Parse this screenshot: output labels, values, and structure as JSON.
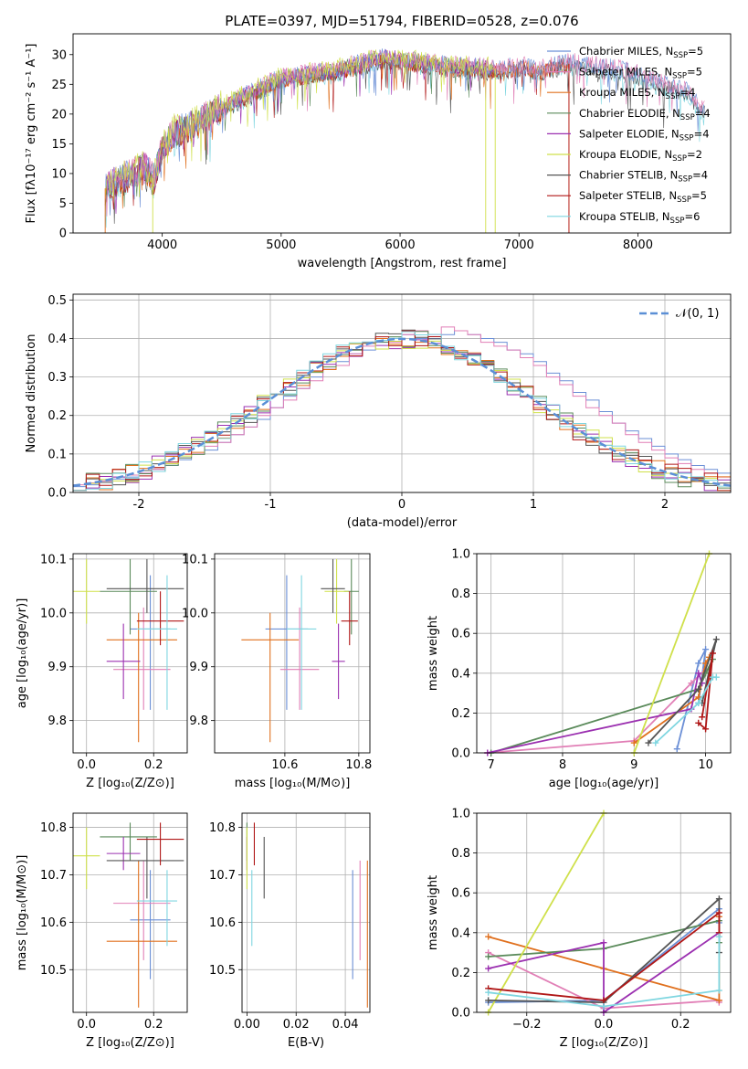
{
  "figure_title": "PLATE=0397, MJD=51794, FIBERID=0528, z=0.076",
  "colors": {
    "chab_miles": "#6b8fd6",
    "salp_miles": "#e17fb6",
    "krou_miles": "#e0701e",
    "chab_elodie": "#5a8a5a",
    "salp_elodie": "#9b30b0",
    "krou_elodie": "#cfe04a",
    "chab_stelib": "#555555",
    "salp_stelib": "#b01717",
    "krou_stelib": "#7fd6e0",
    "gauss": "#5b8fd6"
  },
  "chart_data": [
    {
      "id": "spectrum",
      "type": "line",
      "xlabel": "wavelength [Angstrom, rest frame]",
      "ylabel": "Flux [fλ10⁻¹⁷ erg cm⁻² s⁻¹ A⁻¹]",
      "xlim": [
        3250,
        8780
      ],
      "ylim": [
        0,
        33.5
      ],
      "xticks": [
        "4000",
        "5000",
        "6000",
        "7000",
        "8000"
      ],
      "yticks": [
        "0",
        "5",
        "10",
        "15",
        "20",
        "25",
        "30"
      ],
      "legend_position": "top-right",
      "legend": [
        {
          "label": "Chabrier MILES, N_SSP=5",
          "color": "#6b8fd6"
        },
        {
          "label": "Salpeter MILES, N_SSP=5",
          "color": "#e17fb6"
        },
        {
          "label": "Kroupa MILES, N_SSP=4",
          "color": "#e0701e"
        },
        {
          "label": "Chabrier ELODIE, N_SSP=4",
          "color": "#5a8a5a"
        },
        {
          "label": "Salpeter ELODIE, N_SSP=4",
          "color": "#9b30b0"
        },
        {
          "label": "Kroupa ELODIE, N_SSP=2",
          "color": "#cfe04a"
        },
        {
          "label": "Chabrier STELIB, N_SSP=4",
          "color": "#555555"
        },
        {
          "label": "Salpeter STELIB, N_SSP=5",
          "color": "#b01717"
        },
        {
          "label": "Kroupa STELIB, N_SSP=6",
          "color": "#7fd6e0"
        }
      ],
      "legend_text": [
        {
          "name": "Chabrier MILES, N",
          "sub": "SSP",
          "tail": "=5"
        },
        {
          "name": "Salpeter MILES, N",
          "sub": "SSP",
          "tail": "=5"
        },
        {
          "name": "Kroupa MILES, N",
          "sub": "SSP",
          "tail": "=4"
        },
        {
          "name": "Chabrier ELODIE, N",
          "sub": "SSP",
          "tail": "=4"
        },
        {
          "name": "Salpeter ELODIE, N",
          "sub": "SSP",
          "tail": "=4"
        },
        {
          "name": "Kroupa ELODIE, N",
          "sub": "SSP",
          "tail": "=2"
        },
        {
          "name": "Chabrier STELIB, N",
          "sub": "SSP",
          "tail": "=4"
        },
        {
          "name": "Salpeter STELIB, N",
          "sub": "SSP",
          "tail": "=5"
        },
        {
          "name": "Kroupa STELIB, N",
          "sub": "SSP",
          "tail": "=6"
        }
      ],
      "continuum": [
        [
          3520,
          7.5
        ],
        [
          3700,
          9.5
        ],
        [
          3850,
          11
        ],
        [
          3930,
          9
        ],
        [
          4000,
          14
        ],
        [
          4100,
          17
        ],
        [
          4300,
          18.5
        ],
        [
          4450,
          20.5
        ],
        [
          4600,
          22
        ],
        [
          4800,
          24
        ],
        [
          5000,
          26
        ],
        [
          5200,
          26.5
        ],
        [
          5400,
          27
        ],
        [
          5600,
          28
        ],
        [
          5800,
          29
        ],
        [
          5900,
          29.5
        ],
        [
          6000,
          29
        ],
        [
          6200,
          28.5
        ],
        [
          6400,
          28
        ],
        [
          6600,
          27.8
        ],
        [
          6800,
          27.5
        ],
        [
          7000,
          28
        ],
        [
          7200,
          27.5
        ],
        [
          7400,
          28.5
        ],
        [
          7600,
          28
        ],
        [
          7800,
          27.5
        ],
        [
          8000,
          26.5
        ],
        [
          8200,
          25
        ],
        [
          8400,
          24
        ],
        [
          8550,
          20.5
        ]
      ]
    },
    {
      "id": "residuals",
      "type": "histogram",
      "xlabel": "(data-model)/error",
      "ylabel": "Normed distribution",
      "xlim": [
        -2.5,
        2.5
      ],
      "ylim": [
        0,
        0.515
      ],
      "xticks": [
        "-2",
        "-1",
        "0",
        "1",
        "2"
      ],
      "yticks": [
        "0.0",
        "0.1",
        "0.2",
        "0.3",
        "0.4",
        "0.5"
      ],
      "bin_width": 0.1,
      "legend_position": "top-right",
      "gauss_label": "𝒩(0, 1)",
      "series": [
        {
          "name": "Chabrier MILES",
          "color": "#6b8fd6",
          "values": [
            0.015,
            0.02,
            0.03,
            0.035,
            0.04,
            0.05,
            0.06,
            0.07,
            0.085,
            0.1,
            0.11,
            0.13,
            0.15,
            0.17,
            0.19,
            0.22,
            0.25,
            0.27,
            0.3,
            0.32,
            0.34,
            0.36,
            0.37,
            0.39,
            0.4,
            0.41,
            0.4,
            0.4,
            0.41,
            0.42,
            0.41,
            0.4,
            0.39,
            0.37,
            0.36,
            0.34,
            0.31,
            0.29,
            0.26,
            0.24,
            0.21,
            0.18,
            0.16,
            0.14,
            0.12,
            0.1,
            0.085,
            0.07,
            0.06,
            0.05
          ]
        },
        {
          "name": "Salpeter MILES",
          "color": "#e17fb6",
          "values": [
            0.02,
            0.025,
            0.03,
            0.04,
            0.045,
            0.05,
            0.06,
            0.075,
            0.09,
            0.1,
            0.12,
            0.13,
            0.15,
            0.17,
            0.2,
            0.22,
            0.24,
            0.27,
            0.29,
            0.32,
            0.33,
            0.36,
            0.38,
            0.4,
            0.39,
            0.41,
            0.42,
            0.41,
            0.43,
            0.42,
            0.41,
            0.39,
            0.38,
            0.37,
            0.35,
            0.33,
            0.3,
            0.28,
            0.25,
            0.22,
            0.2,
            0.18,
            0.15,
            0.13,
            0.11,
            0.09,
            0.075,
            0.06,
            0.05,
            0.04
          ]
        }
      ]
    },
    {
      "id": "age_vs_Z",
      "type": "scatter",
      "xlabel": "Z [log₁₀(Z/Z⊙)]",
      "ylabel": "age  [log₁₀(age/yr)]",
      "xlim": [
        -0.04,
        0.3
      ],
      "ylim": [
        9.74,
        10.11
      ],
      "xticks": [
        "0.0",
        "0.2"
      ],
      "yticks": [
        "9.8",
        "9.9",
        "10.0",
        "10.1"
      ]
    },
    {
      "id": "age_vs_mass",
      "type": "scatter",
      "xlabel": "mass [log₁₀(M/M⊙)]",
      "ylabel": "",
      "xlim": [
        10.41,
        10.83
      ],
      "ylim": [
        9.74,
        10.11
      ],
      "xticks": [
        "10.6",
        "10.8"
      ],
      "yticks": [
        "9.8",
        "9.9",
        "10.0",
        "10.1"
      ]
    },
    {
      "id": "massweight_vs_age",
      "type": "line",
      "xlabel": "age  [log₁₀(age/yr)]",
      "ylabel": "mass weight",
      "xlim": [
        6.8,
        10.35
      ],
      "ylim": [
        0,
        1.0
      ],
      "xticks": [
        "7",
        "8",
        "9",
        "10"
      ],
      "yticks": [
        "0.0",
        "0.2",
        "0.4",
        "0.6",
        "0.8",
        "1.0"
      ]
    },
    {
      "id": "mass_vs_Z",
      "type": "scatter",
      "xlabel": "Z [log₁₀(Z/Z⊙)]",
      "ylabel": "mass [log₁₀(M/M⊙)]",
      "xlim": [
        -0.04,
        0.3
      ],
      "ylim": [
        10.41,
        10.83
      ],
      "xticks": [
        "0.0",
        "0.2"
      ],
      "yticks": [
        "10.5",
        "10.6",
        "10.7",
        "10.8"
      ]
    },
    {
      "id": "mass_vs_ebv",
      "type": "scatter",
      "xlabel": "E(B-V)",
      "ylabel": "",
      "xlim": [
        -0.002,
        0.05
      ],
      "ylim": [
        10.41,
        10.83
      ],
      "xticks": [
        "0.00",
        "0.02",
        "0.04"
      ],
      "yticks": [
        "10.5",
        "10.6",
        "10.7",
        "10.8"
      ]
    },
    {
      "id": "massweight_vs_Z",
      "type": "line",
      "xlabel": "Z [log₁₀(Z/Z⊙)]",
      "ylabel": "mass weight",
      "xlim": [
        -0.33,
        0.33
      ],
      "ylim": [
        0,
        1.0
      ],
      "xticks": [
        "−0.2",
        "0.0",
        "0.2"
      ],
      "yticks": [
        "0.0",
        "0.2",
        "0.4",
        "0.6",
        "0.8",
        "1.0"
      ]
    }
  ],
  "models": [
    {
      "key": "chab_miles",
      "color": "#6b8fd6",
      "Z": 0.19,
      "Zerr": [
        0.13,
        0.25
      ],
      "age": 9.97,
      "ageerr": [
        9.82,
        10.07
      ],
      "mass": 10.605,
      "masserr": [
        10.48,
        10.71
      ],
      "ebv": 0.043,
      "weights": [
        [
          9.6,
          0.02
        ],
        [
          9.9,
          0.45
        ],
        [
          10.0,
          0.52
        ],
        [
          9.9,
          0.25
        ]
      ],
      "zw": [
        [
          -0.3,
          0.05
        ],
        [
          0.0,
          0.06
        ],
        [
          0.3,
          0.52
        ],
        [
          0.3,
          0.45
        ]
      ]
    },
    {
      "key": "salp_miles",
      "color": "#e17fb6",
      "Z": 0.17,
      "Zerr": [
        0.08,
        0.25
      ],
      "age": 9.895,
      "ageerr": [
        9.82,
        10.01
      ],
      "mass": 10.64,
      "masserr": [
        10.52,
        10.73
      ],
      "ebv": 0.046,
      "weights": [
        [
          6.95,
          0.0
        ],
        [
          9.0,
          0.06
        ],
        [
          9.8,
          0.35
        ],
        [
          10.0,
          0.42
        ]
      ],
      "zw": [
        [
          -0.3,
          0.3
        ],
        [
          0.0,
          0.02
        ],
        [
          0.3,
          0.06
        ],
        [
          0.3,
          0.05
        ]
      ]
    },
    {
      "key": "krou_miles",
      "color": "#e0701e",
      "Z": 0.155,
      "Zerr": [
        0.06,
        0.27
      ],
      "age": 9.95,
      "ageerr": [
        9.76,
        10.0
      ],
      "mass": 10.56,
      "masserr": [
        10.42,
        10.73
      ],
      "ebv": 0.049,
      "weights": [
        [
          9.0,
          0.05
        ],
        [
          9.9,
          0.28
        ],
        [
          10.0,
          0.45
        ],
        [
          10.05,
          0.48
        ]
      ],
      "zw": [
        [
          -0.3,
          0.38
        ],
        [
          0.0,
          0.22
        ],
        [
          0.3,
          0.06
        ],
        [
          0.3,
          0.48
        ]
      ]
    },
    {
      "key": "chab_elodie",
      "color": "#5a8a5a",
      "Z": 0.13,
      "Zerr": [
        0.04,
        0.21
      ],
      "age": 10.04,
      "ageerr": [
        9.96,
        10.1
      ],
      "mass": 10.78,
      "masserr": [
        10.73,
        10.81
      ],
      "ebv": 0.0,
      "weights": [
        [
          7.0,
          0.0
        ],
        [
          9.9,
          0.32
        ],
        [
          10.1,
          0.47
        ],
        [
          10.0,
          0.4
        ]
      ],
      "zw": [
        [
          -0.3,
          0.28
        ],
        [
          0.0,
          0.32
        ],
        [
          0.3,
          0.46
        ],
        [
          0.3,
          0.35
        ]
      ]
    },
    {
      "key": "salp_elodie",
      "color": "#9b30b0",
      "Z": 0.11,
      "Zerr": [
        0.06,
        0.16
      ],
      "age": 9.91,
      "ageerr": [
        9.84,
        9.98
      ],
      "mass": 10.745,
      "masserr": [
        10.71,
        10.78
      ],
      "ebv": 0.0,
      "weights": [
        [
          6.95,
          0.0
        ],
        [
          9.8,
          0.22
        ],
        [
          9.9,
          0.4
        ],
        [
          9.95,
          0.35
        ]
      ],
      "zw": [
        [
          -0.3,
          0.22
        ],
        [
          0.0,
          0.35
        ],
        [
          0.0,
          0.0
        ],
        [
          0.3,
          0.4
        ]
      ]
    },
    {
      "key": "krou_elodie",
      "color": "#cfe04a",
      "Z": 0.0,
      "Zerr": [
        -0.04,
        0.04
      ],
      "age": 10.04,
      "ageerr": [
        9.98,
        10.1
      ],
      "mass": 10.74,
      "masserr": [
        10.67,
        10.8
      ],
      "ebv": 0.0,
      "weights": [
        [
          9.0,
          0.0
        ],
        [
          10.05,
          1.0
        ]
      ],
      "zw": [
        [
          -0.3,
          0.0
        ],
        [
          0.0,
          1.0
        ]
      ]
    },
    {
      "key": "chab_stelib",
      "color": "#555555",
      "Z": 0.18,
      "Zerr": [
        0.06,
        0.29
      ],
      "age": 10.045,
      "ageerr": [
        10.0,
        10.1
      ],
      "mass": 10.73,
      "masserr": [
        10.65,
        10.78
      ],
      "ebv": 0.007,
      "weights": [
        [
          9.2,
          0.05
        ],
        [
          9.9,
          0.32
        ],
        [
          10.15,
          0.57
        ],
        [
          9.95,
          0.25
        ]
      ],
      "zw": [
        [
          -0.3,
          0.06
        ],
        [
          0.0,
          0.05
        ],
        [
          0.3,
          0.57
        ],
        [
          0.3,
          0.3
        ]
      ]
    },
    {
      "key": "salp_stelib",
      "color": "#b01717",
      "Z": 0.22,
      "Zerr": [
        0.15,
        0.29
      ],
      "age": 9.985,
      "ageerr": [
        9.94,
        10.04
      ],
      "mass": 10.775,
      "masserr": [
        10.72,
        10.81
      ],
      "ebv": 0.003,
      "weights": [
        [
          9.9,
          0.15
        ],
        [
          10.0,
          0.12
        ],
        [
          10.1,
          0.5
        ],
        [
          9.95,
          0.18
        ]
      ],
      "zw": [
        [
          -0.3,
          0.12
        ],
        [
          0.0,
          0.06
        ],
        [
          0.3,
          0.5
        ],
        [
          0.3,
          0.4
        ]
      ]
    },
    {
      "key": "krou_stelib",
      "color": "#7fd6e0",
      "Z": 0.24,
      "Zerr": [
        0.15,
        0.27
      ],
      "age": 9.97,
      "ageerr": [
        9.82,
        10.07
      ],
      "mass": 10.645,
      "masserr": [
        10.55,
        10.71
      ],
      "ebv": 0.002,
      "weights": [
        [
          9.3,
          0.05
        ],
        [
          9.9,
          0.25
        ],
        [
          10.1,
          0.38
        ],
        [
          10.15,
          0.38
        ]
      ],
      "zw": [
        [
          -0.3,
          0.1
        ],
        [
          0.0,
          0.03
        ],
        [
          0.3,
          0.11
        ],
        [
          0.3,
          0.38
        ]
      ]
    }
  ]
}
